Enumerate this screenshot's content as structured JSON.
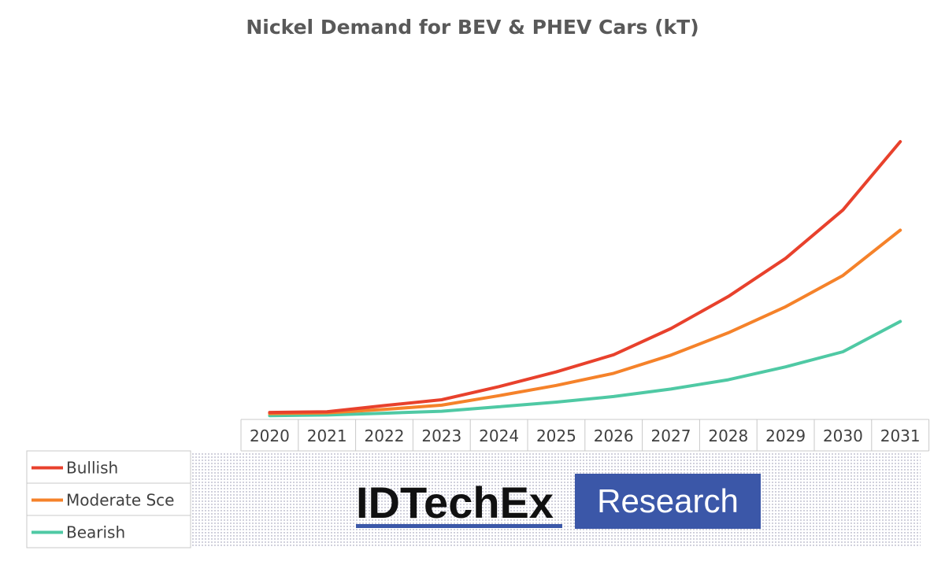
{
  "chart_data": {
    "type": "line",
    "title": "Nickel Demand for BEV & PHEV Cars (kT)",
    "categories": [
      "2020",
      "2021",
      "2022",
      "2023",
      "2024",
      "2025",
      "2026",
      "2027",
      "2028",
      "2029",
      "2030",
      "2031"
    ],
    "series": [
      {
        "name": "Bullish",
        "color": "#e8412c",
        "values": [
          2.3,
          2.6,
          5.7,
          8.6,
          15.1,
          22.4,
          30.9,
          43.9,
          59.8,
          78.7,
          102.7,
          136.6
        ]
      },
      {
        "name": "Moderate Sce",
        "color": "#f5822a",
        "values": [
          1.7,
          2.1,
          3.8,
          5.9,
          10.6,
          15.7,
          21.7,
          30.7,
          41.8,
          54.7,
          70.2,
          92.7
        ]
      },
      {
        "name": "Bearish",
        "color": "#4fc9a4",
        "values": [
          0.7,
          1.0,
          1.9,
          2.9,
          5.1,
          7.4,
          10.2,
          13.9,
          18.5,
          24.9,
          32.4,
          47.4
        ]
      }
    ],
    "xlabel": "",
    "ylabel": "",
    "ylim": [
      0,
      160
    ],
    "grid": false,
    "legend_position": "bottom-left (data table legend)"
  },
  "logo": {
    "word1": "IDTechEx",
    "word2": "Research",
    "box_color": "#3b57a8"
  }
}
